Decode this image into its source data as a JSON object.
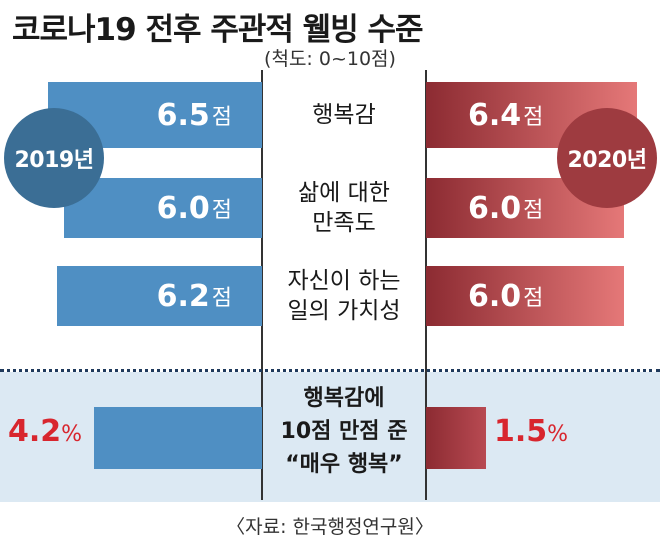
{
  "title": "코로나19 전후 주관적 웰빙 수준",
  "scale_note": "(척도: 0~10점)",
  "source": "〈자료: 한국행정연구원〉",
  "colors": {
    "y2019": "#4f8fc3",
    "y2020_dark": "#8c2b32",
    "y2020_light": "#e57878",
    "badge2019": "#3b6e95",
    "badge2020": "#9e3b40",
    "accent_red": "#d8262e",
    "panel_bg": "#dce9f3"
  },
  "chart_data": {
    "type": "bar",
    "unit": "점",
    "series": [
      {
        "name": "2019년",
        "values": [
          6.5,
          6.0,
          6.2
        ]
      },
      {
        "name": "2020년",
        "values": [
          6.4,
          6.0,
          6.0
        ]
      }
    ],
    "categories": [
      {
        "lines": [
          "행복감"
        ]
      },
      {
        "lines": [
          "삶에 대한",
          "만족도"
        ]
      },
      {
        "lines": [
          "자신이 하는",
          "일의 가치성"
        ]
      }
    ],
    "labels": [
      {
        "y2019": "6.5",
        "y2020": "6.4"
      },
      {
        "y2019": "6.0",
        "y2020": "6.0"
      },
      {
        "y2019": "6.2",
        "y2020": "6.0"
      }
    ],
    "bottom": {
      "label_lines": [
        "행복감에",
        "10점 만점 준",
        "“매우 행복”"
      ],
      "y2019": 4.2,
      "y2020": 1.5,
      "y2019_label": "4.2",
      "y2020_label": "1.5",
      "unit": "%"
    }
  }
}
